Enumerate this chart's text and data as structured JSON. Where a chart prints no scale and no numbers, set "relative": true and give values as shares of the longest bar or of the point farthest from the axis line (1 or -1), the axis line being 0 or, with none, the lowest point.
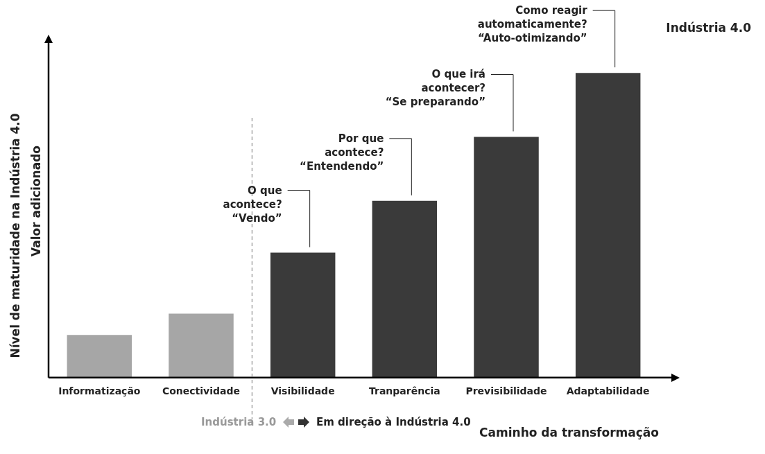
{
  "chart_data": {
    "type": "bar",
    "title": "Indústria 4.0",
    "xlabel": "Caminho da transformação",
    "ylabel": "Nível de maturidade na Indústria 4.0",
    "categories": [
      "Informatização",
      "Conectividade",
      "Visibilidade",
      "Tranparência",
      "Previsibilidade",
      "Adaptabilidade"
    ],
    "values": [
      0.14,
      0.21,
      0.41,
      0.58,
      0.79,
      1
    ],
    "colors": [
      "#a6a6a6",
      "#a6a6a6",
      "#3a3a3a",
      "#3a3a3a",
      "#3a3a3a",
      "#3a3a3a"
    ],
    "relative": true,
    "grid": false,
    "legend": false,
    "tick_labels": "x",
    "annotations": [
      "Valor adicionado",
      "Indústria 3.0",
      "Em direção à Indústria 4.0",
      "O que\nacontece?\n“Vendo”",
      "Por que\nacontece?\n“Entendendo”",
      "O que irá\nacontecer?\n“Se preparando”",
      "Como reagir\nautomaticamente?\n“Auto-otimizando”"
    ]
  }
}
